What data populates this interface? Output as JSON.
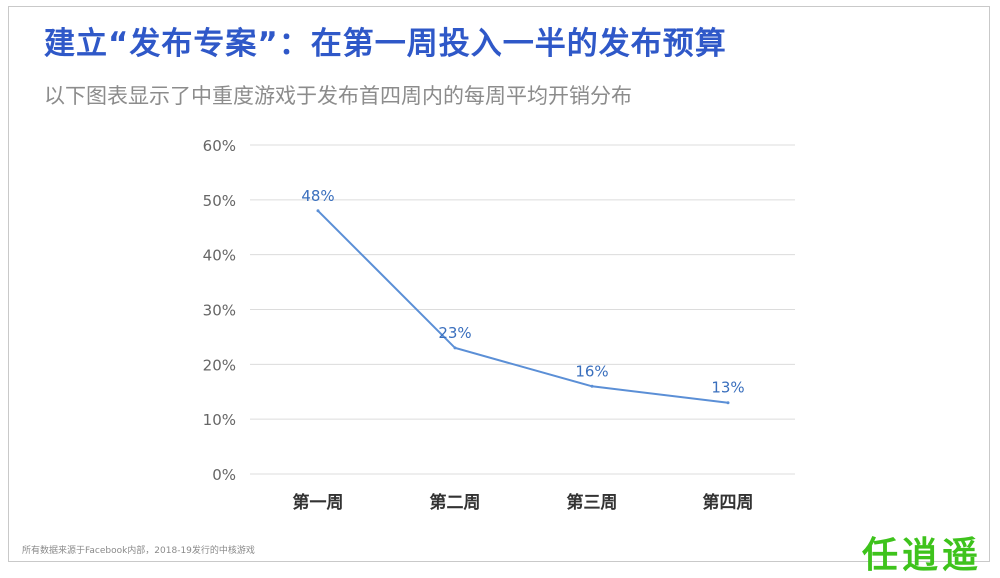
{
  "title": "建立“发布专案”：在第一周投入一半的发布预算",
  "subtitle": "以下图表显示了中重度游戏于发布首四周内的每周平均开销分布",
  "footnote": "所有数据来源于Facebook内部，2018-19发行的中核游戏",
  "watermark": "任逍遥",
  "colors": {
    "title": "#2f58c8",
    "line": "#5b8fd6",
    "label": "#3a6fbd",
    "grid": "#dcdcdc"
  },
  "chart_data": {
    "type": "line",
    "categories": [
      "第一周",
      "第二周",
      "第三周",
      "第四周"
    ],
    "series": [
      {
        "values": [
          48,
          23,
          16,
          13
        ],
        "labels": [
          "48%",
          "23%",
          "16%",
          "13%"
        ]
      }
    ],
    "yticks": [
      "0%",
      "10%",
      "20%",
      "30%",
      "40%",
      "50%",
      "60%"
    ],
    "ylim": [
      0,
      60
    ],
    "grid": true
  }
}
